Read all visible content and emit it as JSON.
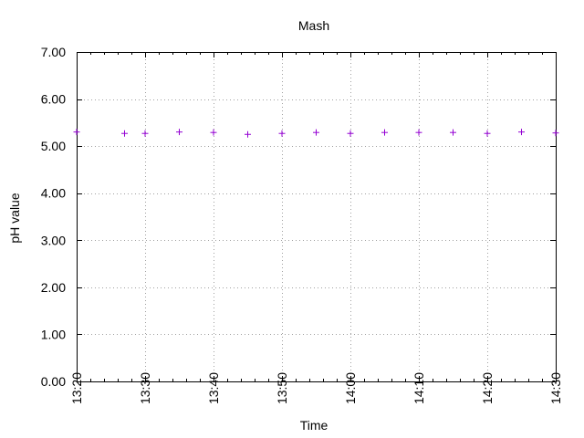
{
  "chart_data": {
    "type": "scatter",
    "title": "Mash",
    "xlabel": "Time",
    "ylabel": "pH value",
    "xlim": [
      "13:20",
      "14:30"
    ],
    "ylim": [
      0,
      7
    ],
    "x_ticks": [
      "13:20",
      "13:30",
      "13:40",
      "13:50",
      "14:00",
      "14:10",
      "14:20",
      "14:30"
    ],
    "y_ticks": [
      "0.00",
      "1.00",
      "2.00",
      "3.00",
      "4.00",
      "5.00",
      "6.00",
      "7.00"
    ],
    "grid": true,
    "marker": "+",
    "point_color": "#9400d3",
    "series": [
      {
        "x": [
          "13:20",
          "13:27",
          "13:30",
          "13:35",
          "13:40",
          "13:45",
          "13:50",
          "13:55",
          "14:00",
          "14:05",
          "14:10",
          "14:15",
          "14:20",
          "14:25",
          "14:30"
        ],
        "y": [
          5.3,
          5.27,
          5.27,
          5.3,
          5.29,
          5.25,
          5.27,
          5.29,
          5.27,
          5.29,
          5.29,
          5.29,
          5.27,
          5.3,
          5.28
        ]
      }
    ]
  }
}
